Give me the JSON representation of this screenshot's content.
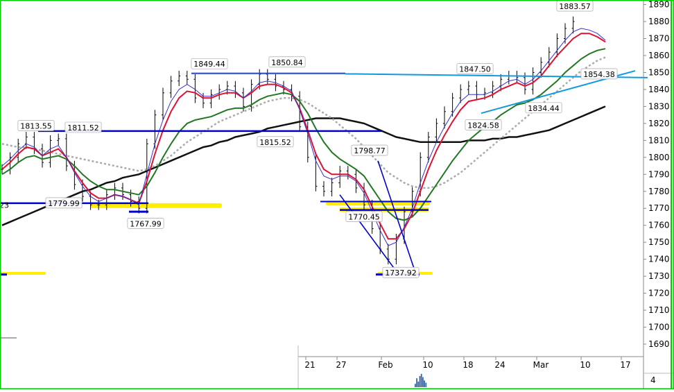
{
  "chart_data": {
    "type": "line",
    "title": "",
    "xlabel": "",
    "ylabel": "",
    "ylim": [
      1684,
      1896
    ],
    "y_ticks": [
      1690,
      1700,
      1710,
      1720,
      1730,
      1740,
      1750,
      1760,
      1770,
      1780,
      1790,
      1800,
      1810,
      1820,
      1830,
      1840,
      1850,
      1860,
      1870,
      1880,
      1890
    ],
    "x_tick_labels": [
      "21",
      "27",
      "Feb",
      "10",
      "18",
      "24",
      "Mar",
      "10",
      "17"
    ],
    "volume_axis_label": "4",
    "grid": false,
    "colors": {
      "price": "#000000",
      "ema_fast": "#3333cc",
      "ema_red": "#dd1133",
      "ema_green": "#227722",
      "ma_dotted": "#aaaaaa",
      "ma_slow": "#111111",
      "trendline": "#1199dd",
      "support": "#0000cc",
      "highlight": "#ffee00",
      "frame": "#00cc00",
      "volume": "#3366aa"
    },
    "annotations": [
      {
        "label": "1813.55",
        "value": 1813.55
      },
      {
        "label": "1811.52",
        "value": 1811.52
      },
      {
        "label": "1779.99",
        "value": 1779.99
      },
      {
        "label": "1767.99",
        "value": 1767.99
      },
      {
        "label": "1849.44",
        "value": 1849.44
      },
      {
        "label": "1850.84",
        "value": 1850.84
      },
      {
        "label": "1815.52",
        "value": 1815.52
      },
      {
        "label": "1798.77",
        "value": 1798.77
      },
      {
        "label": "1770.45",
        "value": 1770.45
      },
      {
        "label": "1737.92",
        "value": 1737.92
      },
      {
        "label": "1847.50",
        "value": 1847.5
      },
      {
        "label": "1824.58",
        "value": 1824.58
      },
      {
        "label": "1834.44",
        "value": 1834.44
      },
      {
        "label": "1854.38",
        "value": 1854.38
      },
      {
        "label": "1883.57",
        "value": 1883.57
      },
      {
        "label": "23",
        "value": 1773
      }
    ],
    "horizontal_levels": [
      {
        "value": 1815.5,
        "color": "support"
      },
      {
        "value": 1773,
        "color": "support"
      },
      {
        "value": 1768,
        "color": "support"
      },
      {
        "value": 1849.5,
        "color": "support"
      },
      {
        "value": 1773,
        "color": "support"
      },
      {
        "value": 1769,
        "color": "support"
      },
      {
        "value": 1731,
        "color": "support"
      },
      {
        "value": 1731,
        "color": "support"
      },
      {
        "value": 1847,
        "color": "trendline"
      }
    ],
    "series": [
      {
        "key": "price",
        "values": [
          1793,
          1800,
          1808,
          1812,
          1805,
          1797,
          1810,
          1811,
          1795,
          1784,
          1777,
          1772,
          1772,
          1778,
          1782,
          1778,
          1774,
          1770,
          1808,
          1825,
          1838,
          1845,
          1848,
          1846,
          1835,
          1832,
          1837,
          1840,
          1842,
          1838,
          1830,
          1843,
          1849,
          1846,
          1842,
          1840,
          1836,
          1818,
          1800,
          1783,
          1780,
          1785,
          1792,
          1790,
          1782,
          1772,
          1758,
          1746,
          1740,
          1752,
          1768,
          1780,
          1800,
          1812,
          1820,
          1827,
          1835,
          1840,
          1842,
          1837,
          1838,
          1842,
          1846,
          1848,
          1847,
          1840,
          1850,
          1856,
          1862,
          1870,
          1876,
          1880,
          1878,
          1875,
          1870,
          1866
        ]
      },
      {
        "key": "ema_fast",
        "values": [
          1795,
          1799,
          1804,
          1808,
          1806,
          1801,
          1805,
          1807,
          1800,
          1791,
          1783,
          1777,
          1774,
          1776,
          1778,
          1777,
          1775,
          1772,
          1790,
          1808,
          1822,
          1833,
          1840,
          1843,
          1840,
          1836,
          1836,
          1838,
          1840,
          1839,
          1835,
          1839,
          1844,
          1845,
          1844,
          1842,
          1839,
          1828,
          1814,
          1798,
          1789,
          1787,
          1789,
          1789,
          1786,
          1779,
          1768,
          1757,
          1748,
          1750,
          1759,
          1770,
          1785,
          1798,
          1809,
          1818,
          1826,
          1833,
          1837,
          1837,
          1837,
          1839,
          1842,
          1845,
          1846,
          1843,
          1846,
          1851,
          1857,
          1863,
          1869,
          1874,
          1876,
          1875,
          1873,
          1869
        ]
      },
      {
        "key": "ema_red",
        "values": [
          1793,
          1797,
          1802,
          1806,
          1805,
          1801,
          1803,
          1805,
          1800,
          1792,
          1785,
          1779,
          1776,
          1776,
          1778,
          1777,
          1775,
          1773,
          1786,
          1802,
          1816,
          1827,
          1835,
          1839,
          1838,
          1835,
          1835,
          1837,
          1838,
          1838,
          1835,
          1838,
          1842,
          1843,
          1843,
          1841,
          1838,
          1829,
          1816,
          1802,
          1793,
          1790,
          1790,
          1790,
          1787,
          1781,
          1771,
          1761,
          1752,
          1752,
          1758,
          1767,
          1780,
          1793,
          1804,
          1813,
          1821,
          1828,
          1833,
          1834,
          1835,
          1837,
          1840,
          1842,
          1844,
          1842,
          1844,
          1848,
          1854,
          1860,
          1865,
          1870,
          1873,
          1873,
          1871,
          1868
        ]
      },
      {
        "key": "ema_green",
        "values": [
          1790,
          1793,
          1797,
          1800,
          1801,
          1799,
          1800,
          1801,
          1799,
          1795,
          1790,
          1786,
          1783,
          1781,
          1781,
          1780,
          1779,
          1778,
          1783,
          1791,
          1800,
          1808,
          1815,
          1820,
          1822,
          1823,
          1824,
          1826,
          1828,
          1829,
          1829,
          1831,
          1834,
          1836,
          1837,
          1838,
          1837,
          1833,
          1826,
          1817,
          1809,
          1803,
          1799,
          1796,
          1793,
          1789,
          1782,
          1775,
          1768,
          1764,
          1763,
          1765,
          1770,
          1777,
          1784,
          1791,
          1798,
          1804,
          1810,
          1814,
          1818,
          1821,
          1825,
          1828,
          1831,
          1832,
          1834,
          1837,
          1841,
          1845,
          1850,
          1854,
          1858,
          1861,
          1863,
          1864
        ]
      },
      {
        "key": "ma_dotted",
        "values": [
          1808,
          1807,
          1806,
          1806,
          1805,
          1804,
          1803,
          1802,
          1801,
          1800,
          1799,
          1798,
          1797,
          1796,
          1795,
          1794,
          1793,
          1792,
          1793,
          1795,
          1798,
          1801,
          1805,
          1809,
          1812,
          1815,
          1818,
          1821,
          1823,
          1825,
          1827,
          1829,
          1831,
          1833,
          1834,
          1835,
          1835,
          1834,
          1832,
          1829,
          1826,
          1823,
          1819,
          1815,
          1811,
          1806,
          1801,
          1796,
          1791,
          1788,
          1785,
          1783,
          1782,
          1782,
          1783,
          1785,
          1788,
          1791,
          1795,
          1799,
          1803,
          1807,
          1811,
          1815,
          1819,
          1823,
          1827,
          1831,
          1835,
          1839,
          1843,
          1847,
          1851,
          1854,
          1857,
          1859
        ]
      },
      {
        "key": "ma_slow",
        "values": [
          1760,
          1762,
          1764,
          1766,
          1768,
          1770,
          1772,
          1774,
          1776,
          1778,
          1780,
          1781,
          1783,
          1785,
          1786,
          1788,
          1789,
          1790,
          1792,
          1794,
          1796,
          1798,
          1800,
          1802,
          1804,
          1806,
          1807,
          1809,
          1810,
          1812,
          1813,
          1814,
          1815,
          1817,
          1818,
          1819,
          1820,
          1821,
          1822,
          1823,
          1823,
          1823,
          1823,
          1822,
          1821,
          1820,
          1818,
          1816,
          1814,
          1812,
          1811,
          1810,
          1809,
          1809,
          1809,
          1809,
          1809,
          1809,
          1810,
          1810,
          1810,
          1811,
          1811,
          1812,
          1812,
          1813,
          1814,
          1815,
          1816,
          1818,
          1820,
          1822,
          1824,
          1826,
          1828,
          1830
        ]
      }
    ],
    "volume": [
      3,
      8,
      5,
      10,
      12,
      9,
      6,
      4
    ]
  }
}
